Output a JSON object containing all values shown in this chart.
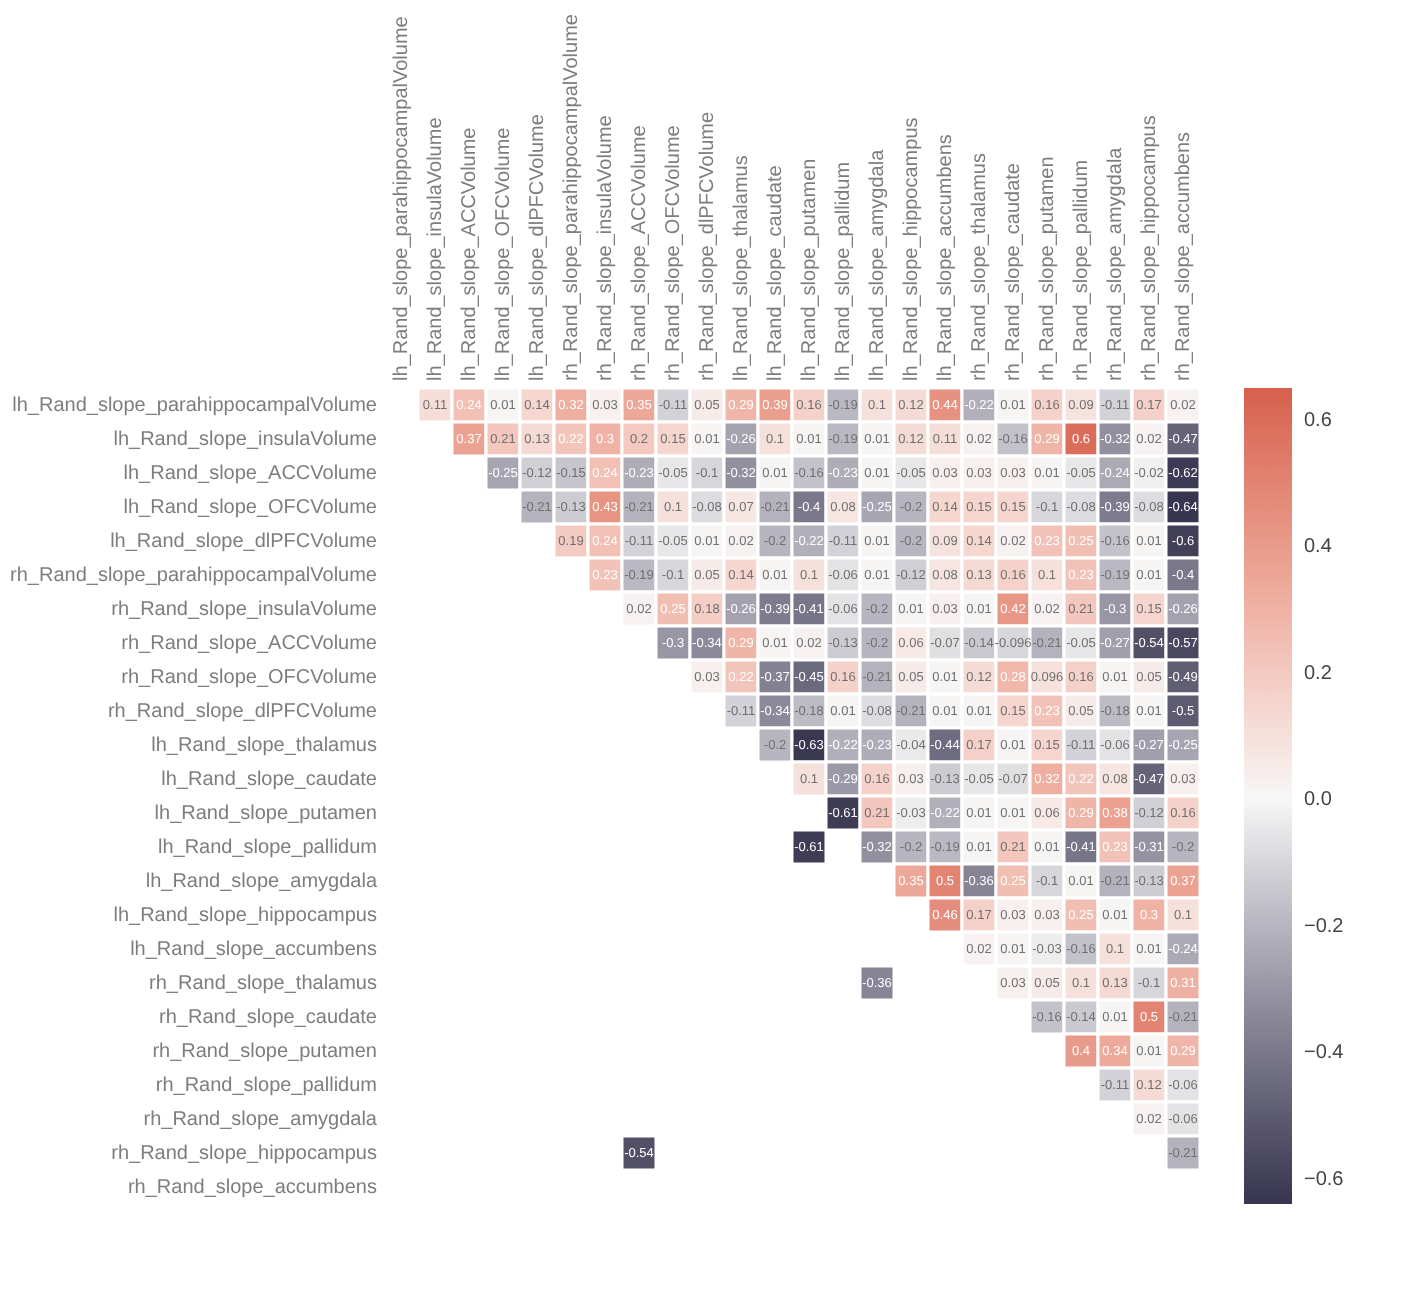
{
  "chart_data": {
    "type": "heatmap",
    "categories": [
      "lh_Rand_slope_parahippocampalVolume",
      "lh_Rand_slope_insulaVolume",
      "lh_Rand_slope_ACCVolume",
      "lh_Rand_slope_OFCVolume",
      "lh_Rand_slope_dlPFCVolume",
      "rh_Rand_slope_parahippocampalVolume",
      "rh_Rand_slope_insulaVolume",
      "rh_Rand_slope_ACCVolume",
      "rh_Rand_slope_OFCVolume",
      "rh_Rand_slope_dlPFCVolume",
      "lh_Rand_slope_thalamus",
      "lh_Rand_slope_caudate",
      "lh_Rand_slope_putamen",
      "lh_Rand_slope_pallidum",
      "lh_Rand_slope_amygdala",
      "lh_Rand_slope_hippocampus",
      "lh_Rand_slope_accumbens",
      "rh_Rand_slope_thalamus",
      "rh_Rand_slope_caudate",
      "rh_Rand_slope_putamen",
      "rh_Rand_slope_pallidum",
      "rh_Rand_slope_amygdala",
      "rh_Rand_slope_hippocampus",
      "rh_Rand_slope_accumbens"
    ],
    "y_categories": [
      "lh_Rand_slope_parahippocampalVolume",
      "lh_Rand_slope_insulaVolume",
      "lh_Rand_slope_ACCVolume",
      "lh_Rand_slope_OFCVolume",
      "lh_Rand_slope_dlPFCVolume",
      "rh_Rand_slope_parahippocampalVolume",
      "rh_Rand_slope_insulaVolume",
      "rh_Rand_slope_ACCVolume",
      "rh_Rand_slope_OFCVolume",
      "rh_Rand_slope_dlPFCVolume",
      "lh_Rand_slope_thalamus",
      "lh_Rand_slope_caudate",
      "lh_Rand_slope_putamen",
      "lh_Rand_slope_pallidum",
      "lh_Rand_slope_amygdala",
      "lh_Rand_slope_hippocampus",
      "lh_Rand_slope_accumbens",
      "rh_Rand_slope_thalamus",
      "rh_Rand_slope_caudate",
      "rh_Rand_slope_putamen",
      "rh_Rand_slope_pallidum",
      "rh_Rand_slope_amygdala",
      "rh_Rand_slope_hippocampus",
      "rh_Rand_slope_accumbens"
    ],
    "cells": [
      [
        null,
        0.11,
        0.24,
        0.01,
        0.14,
        0.32,
        0.03,
        0.35,
        -0.11,
        0.05,
        0.29,
        0.39,
        0.16,
        -0.19,
        0.1,
        0.12,
        0.44,
        -0.22,
        0.01,
        0.16,
        0.09,
        -0.11,
        0.17,
        0.02
      ],
      [
        null,
        null,
        0.37,
        0.21,
        0.13,
        0.22,
        0.3,
        0.2,
        0.15,
        0.01,
        -0.26,
        0.1,
        0.01,
        -0.19,
        0.01,
        0.12,
        0.11,
        0.02,
        -0.16,
        0.29,
        0.6,
        -0.32,
        0.02,
        -0.47
      ],
      [
        null,
        null,
        null,
        -0.25,
        -0.12,
        -0.15,
        0.24,
        -0.23,
        -0.05,
        -0.1,
        -0.32,
        0.01,
        -0.16,
        -0.23,
        0.01,
        -0.05,
        0.03,
        0.03,
        0.03,
        0.01,
        -0.05,
        -0.24,
        -0.02,
        -0.62
      ],
      [
        null,
        null,
        null,
        null,
        -0.21,
        -0.13,
        0.43,
        -0.21,
        0.1,
        -0.08,
        0.07,
        -0.21,
        -0.4,
        0.08,
        -0.25,
        -0.2,
        0.14,
        0.15,
        0.15,
        -0.1,
        -0.08,
        -0.39,
        -0.08,
        -0.64
      ],
      [
        null,
        null,
        null,
        null,
        null,
        0.19,
        0.24,
        -0.11,
        -0.05,
        0.01,
        0.02,
        -0.2,
        -0.22,
        -0.11,
        0.01,
        -0.2,
        0.09,
        0.14,
        0.02,
        0.23,
        0.25,
        -0.16,
        0.01,
        -0.6
      ],
      [
        null,
        null,
        null,
        null,
        null,
        null,
        0.23,
        -0.19,
        -0.1,
        0.05,
        0.14,
        0.01,
        0.1,
        -0.06,
        0.01,
        -0.12,
        0.08,
        0.13,
        0.16,
        0.1,
        0.23,
        -0.19,
        0.01,
        -0.4
      ],
      [
        null,
        null,
        null,
        null,
        null,
        null,
        null,
        0.02,
        0.25,
        0.18,
        -0.26,
        -0.39,
        -0.41,
        -0.06,
        -0.2,
        0.01,
        0.03,
        0.01,
        0.42,
        0.02,
        0.21,
        -0.3,
        0.15,
        -0.26
      ],
      [
        null,
        null,
        null,
        null,
        null,
        null,
        null,
        null,
        -0.3,
        -0.34,
        0.29,
        0.01,
        0.02,
        -0.13,
        -0.2,
        0.06,
        -0.07,
        -0.14,
        -0.096,
        -0.21,
        -0.05,
        -0.27,
        -0.54,
        -0.57
      ],
      [
        null,
        null,
        null,
        null,
        null,
        null,
        null,
        null,
        null,
        0.03,
        0.22,
        -0.37,
        -0.45,
        0.16,
        -0.21,
        0.05,
        0.01,
        0.12,
        0.28,
        0.096,
        0.16,
        0.01,
        0.05,
        -0.49
      ],
      [
        null,
        null,
        null,
        null,
        null,
        null,
        null,
        null,
        null,
        null,
        -0.11,
        -0.34,
        -0.18,
        0.01,
        -0.08,
        -0.21,
        0.01,
        0.01,
        0.15,
        0.23,
        0.05,
        -0.18,
        0.01,
        -0.5
      ],
      [
        null,
        null,
        null,
        null,
        null,
        null,
        null,
        null,
        null,
        null,
        null,
        -0.2,
        -0.63,
        -0.22,
        -0.23,
        -0.04,
        -0.44,
        0.17,
        0.01,
        0.15,
        -0.11,
        -0.06,
        -0.27,
        -0.25
      ],
      [
        null,
        null,
        null,
        null,
        null,
        null,
        null,
        null,
        null,
        null,
        null,
        null,
        0.1,
        -0.29,
        0.16,
        0.03,
        -0.13,
        -0.05,
        -0.07,
        0.32,
        0.22,
        0.08,
        -0.47,
        0.03
      ],
      [
        null,
        null,
        null,
        null,
        null,
        null,
        null,
        null,
        null,
        null,
        null,
        null,
        null,
        -0.61,
        0.21,
        -0.03,
        -0.22,
        0.01,
        0.01,
        0.06,
        0.29,
        0.38,
        -0.12,
        0.16
      ],
      [
        null,
        null,
        null,
        null,
        null,
        null,
        null,
        null,
        null,
        null,
        null,
        null,
        -0.61,
        null,
        -0.32,
        -0.2,
        -0.19,
        0.01,
        0.21,
        0.01,
        -0.41,
        0.23,
        -0.31,
        -0.2
      ],
      [
        null,
        null,
        null,
        null,
        null,
        null,
        null,
        null,
        null,
        null,
        null,
        null,
        null,
        null,
        null,
        0.35,
        0.5,
        -0.36,
        0.25,
        -0.1,
        0.01,
        -0.21,
        -0.13,
        0.37
      ],
      [
        null,
        null,
        null,
        null,
        null,
        null,
        null,
        null,
        null,
        null,
        null,
        null,
        null,
        null,
        null,
        null,
        0.46,
        0.17,
        0.03,
        0.03,
        0.25,
        0.01,
        0.3,
        0.1
      ],
      [
        null,
        null,
        null,
        null,
        null,
        null,
        null,
        null,
        null,
        null,
        null,
        null,
        null,
        null,
        null,
        null,
        null,
        0.02,
        0.01,
        -0.03,
        -0.16,
        0.1,
        0.01,
        -0.24
      ],
      [
        null,
        null,
        null,
        null,
        null,
        null,
        null,
        null,
        null,
        null,
        null,
        null,
        null,
        null,
        -0.36,
        null,
        null,
        null,
        0.03,
        0.05,
        0.1,
        0.13,
        -0.1,
        0.31
      ],
      [
        null,
        null,
        null,
        null,
        null,
        null,
        null,
        null,
        null,
        null,
        null,
        null,
        null,
        null,
        null,
        null,
        null,
        null,
        null,
        -0.16,
        -0.14,
        0.01,
        0.5,
        -0.21
      ],
      [
        null,
        null,
        null,
        null,
        null,
        null,
        null,
        null,
        null,
        null,
        null,
        null,
        null,
        null,
        null,
        null,
        null,
        null,
        null,
        null,
        0.4,
        0.34,
        0.01,
        0.29
      ],
      [
        null,
        null,
        null,
        null,
        null,
        null,
        null,
        null,
        null,
        null,
        null,
        null,
        null,
        null,
        null,
        null,
        null,
        null,
        null,
        null,
        null,
        -0.11,
        0.12,
        -0.06
      ],
      [
        null,
        null,
        null,
        null,
        null,
        null,
        null,
        null,
        null,
        null,
        null,
        null,
        null,
        null,
        null,
        null,
        null,
        null,
        null,
        null,
        null,
        null,
        0.02,
        -0.06
      ],
      [
        null,
        null,
        null,
        null,
        null,
        null,
        null,
        -0.54,
        null,
        null,
        null,
        null,
        null,
        null,
        null,
        null,
        null,
        null,
        null,
        null,
        null,
        null,
        null,
        -0.21
      ],
      [
        null,
        null,
        null,
        null,
        null,
        null,
        null,
        null,
        null,
        null,
        null,
        null,
        null,
        null,
        null,
        null,
        null,
        null,
        null,
        null,
        null,
        null,
        null,
        null
      ]
    ],
    "clim": [
      -0.64,
      0.65
    ],
    "cticks": [
      {
        "value": -0.6,
        "label": "−0.6"
      },
      {
        "value": -0.4,
        "label": "−0.4"
      },
      {
        "value": -0.2,
        "label": "−0.2"
      },
      {
        "value": 0,
        "label": "0.0"
      },
      0.2,
      0.4,
      0.6
    ],
    "data_labels": true
  }
}
